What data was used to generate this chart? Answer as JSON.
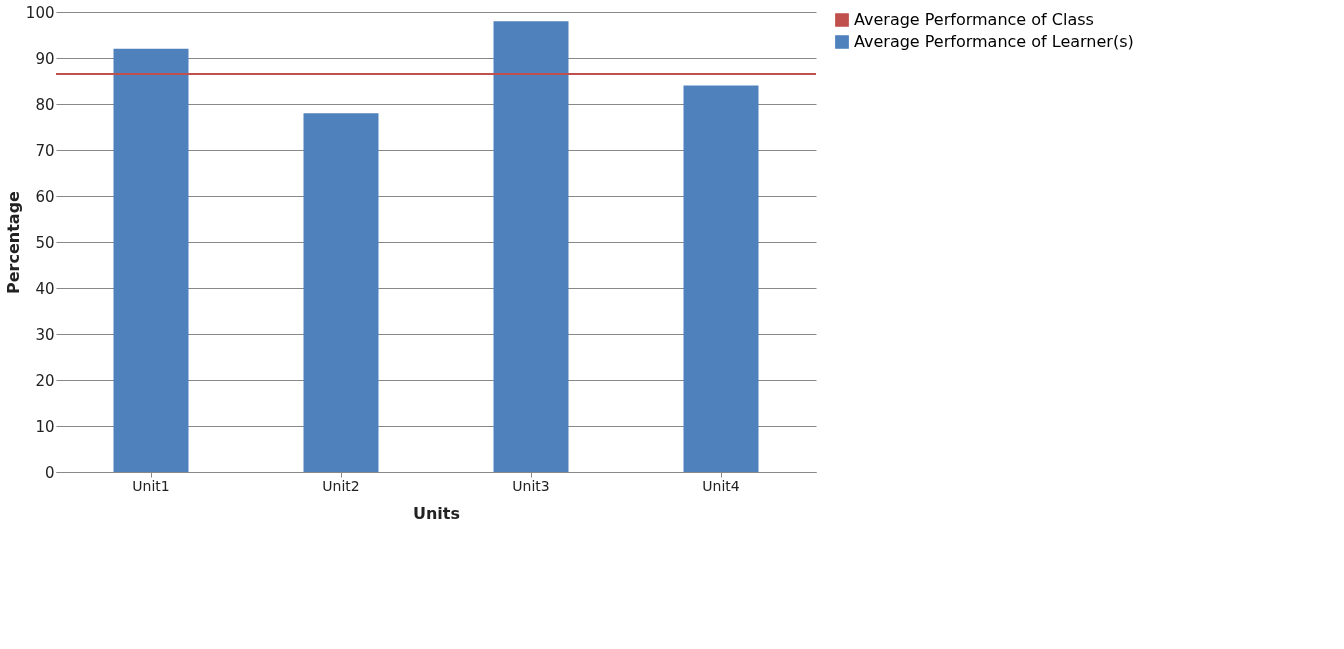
{
  "chart_data": {
    "type": "bar",
    "xlabel": "Units",
    "ylabel": "Percentage",
    "categories": [
      "Unit1",
      "Unit2",
      "Unit3",
      "Unit4"
    ],
    "series": [
      {
        "name": "Average Performance of Learner(s)",
        "color": "#4f81bd",
        "values": [
          92,
          78,
          98,
          84
        ]
      }
    ],
    "ref_lines": [
      {
        "axis": "y",
        "value": 86.5,
        "label": "Average Performance of Class",
        "color": "#c0504d"
      }
    ],
    "ylim": [
      0,
      100
    ],
    "yticks": [
      0,
      10,
      20,
      30,
      40,
      50,
      60,
      70,
      80,
      90,
      100
    ],
    "grid": "y",
    "legend": "right"
  }
}
